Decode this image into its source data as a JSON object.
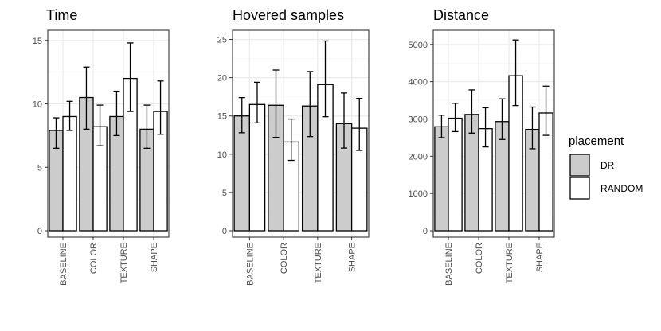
{
  "chart_data": [
    {
      "type": "bar",
      "title": "Time",
      "xlabel": "",
      "ylabel": "",
      "categories": [
        "BASELINE",
        "COLOR",
        "TEXTURE",
        "SHAPE"
      ],
      "series": [
        {
          "name": "DR",
          "values": [
            7.9,
            10.5,
            9.0,
            8.0
          ],
          "error_low": [
            6.5,
            8.0,
            7.5,
            6.5
          ],
          "error_high": [
            8.9,
            12.9,
            11.0,
            9.9
          ]
        },
        {
          "name": "RANDOM",
          "values": [
            9.0,
            8.2,
            12.0,
            9.4
          ],
          "error_low": [
            7.9,
            6.7,
            9.4,
            7.6
          ],
          "error_high": [
            10.2,
            9.9,
            14.8,
            11.8
          ]
        }
      ],
      "ylim": [
        0,
        15.8
      ],
      "yticks": [
        0,
        5,
        10,
        15
      ],
      "grid": true
    },
    {
      "type": "bar",
      "title": "Hovered samples",
      "xlabel": "",
      "ylabel": "",
      "categories": [
        "BASELINE",
        "COLOR",
        "TEXTURE",
        "SHAPE"
      ],
      "series": [
        {
          "name": "DR",
          "values": [
            15.0,
            16.4,
            16.3,
            14.0
          ],
          "error_low": [
            12.8,
            12.2,
            12.3,
            10.8
          ],
          "error_high": [
            17.4,
            21.0,
            20.8,
            18.0
          ]
        },
        {
          "name": "RANDOM",
          "values": [
            16.5,
            11.6,
            19.1,
            13.4
          ],
          "error_low": [
            14.1,
            9.2,
            14.9,
            10.5
          ],
          "error_high": [
            19.4,
            14.6,
            24.8,
            17.3
          ]
        }
      ],
      "ylim": [
        0,
        26.2
      ],
      "yticks": [
        0,
        5,
        10,
        15,
        20,
        25
      ],
      "grid": true
    },
    {
      "type": "bar",
      "title": "Distance",
      "xlabel": "",
      "ylabel": "",
      "categories": [
        "BASELINE",
        "COLOR",
        "TEXTURE",
        "SHAPE"
      ],
      "series": [
        {
          "name": "DR",
          "values": [
            2790,
            3120,
            2930,
            2720
          ],
          "error_low": [
            2500,
            2620,
            2450,
            2200
          ],
          "error_high": [
            3100,
            3780,
            3540,
            3320
          ]
        },
        {
          "name": "RANDOM",
          "values": [
            3020,
            2740,
            4160,
            3160
          ],
          "error_low": [
            2660,
            2250,
            3360,
            2560
          ],
          "error_high": [
            3420,
            3300,
            5120,
            3880
          ]
        }
      ],
      "ylim": [
        0,
        5380
      ],
      "yticks": [
        0,
        1000,
        2000,
        3000,
        4000,
        5000
      ],
      "grid": true
    }
  ],
  "legend": {
    "title": "placement",
    "items": [
      {
        "label": "DR",
        "color": "#cccccc"
      },
      {
        "label": "RANDOM",
        "color": "#ffffff"
      }
    ]
  },
  "colors": {
    "DR": "#cccccc",
    "RANDOM": "#ffffff",
    "bar_outline": "#000000",
    "grid_major": "#ebebeb",
    "grid_minor": "#f5f5f5",
    "panel_border": "#333333",
    "tick_text": "#4d4d4d"
  }
}
